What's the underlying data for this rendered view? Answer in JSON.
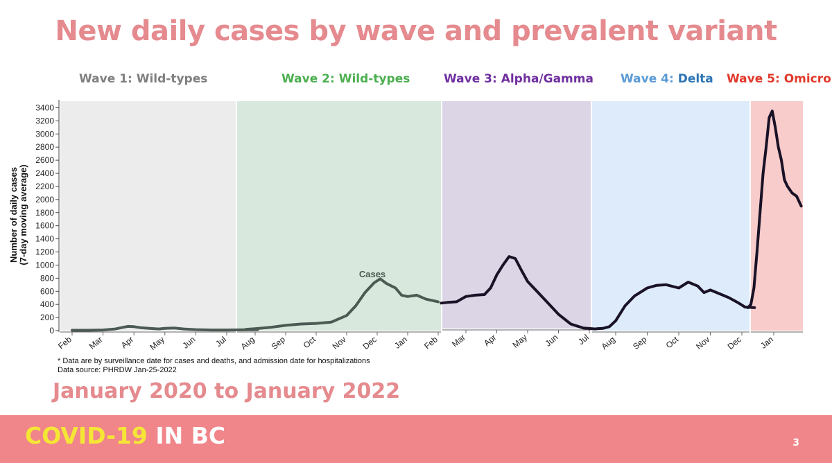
{
  "slide": {
    "title": "New daily cases by wave and prevalent variant",
    "subtitle": "January 2020 to January 2022",
    "footnote_1": "* Data are by surveillance date for cases and deaths, and admission date for hospitalizations",
    "footnote_2": "Data source: PHRDW Jan-25-2022",
    "brand_part1": "COVID-19",
    "brand_part2": "IN BC",
    "page_number": "3"
  },
  "waves": [
    {
      "label": "Wave 1: Wild-types",
      "label_color": "#7f7f7f",
      "band_color": "#ececec"
    },
    {
      "label": "Wave 2: Wild-types",
      "label_color": "#4caf50",
      "band_color": "#d8e8dc"
    },
    {
      "label": "Wave 3: Alpha/Gamma",
      "label_color": "#7030a0",
      "band_color": "#dcd5e6"
    },
    {
      "label_prefix": "Wave 4: ",
      "label_suffix": "Delta",
      "label_color": "#2e75b6",
      "label_prefix_color": "#5b9bd5",
      "band_color": "#ddebfa"
    },
    {
      "label": "Wave 5: Omicron",
      "label_color": "#e0392b",
      "band_color": "#f8cccb"
    }
  ],
  "chart_data": {
    "type": "line",
    "ylabel": "Number of daily cases\n(7-day moving average)",
    "ylim": [
      0,
      3500
    ],
    "yticks": [
      0,
      200,
      400,
      600,
      800,
      1000,
      1200,
      1400,
      1600,
      1800,
      2000,
      2200,
      2400,
      2600,
      2800,
      3000,
      3200,
      3400
    ],
    "annotation": "Cases",
    "panels": [
      {
        "wave": "Wave 1",
        "xticks": [
          "Feb",
          "Mar",
          "Apr",
          "May",
          "Jun",
          "Jul"
        ],
        "x_range": [
          0,
          6.2
        ],
        "x": [
          0,
          0.5,
          1.0,
          1.4,
          1.6,
          1.8,
          2.0,
          2.2,
          2.5,
          2.8,
          3.0,
          3.3,
          3.6,
          4.0,
          4.5,
          5.0,
          5.5,
          6.0
        ],
        "y": [
          5,
          5,
          10,
          25,
          45,
          65,
          60,
          45,
          35,
          25,
          35,
          40,
          25,
          15,
          10,
          10,
          12,
          15
        ]
      },
      {
        "wave": "Wave 2",
        "xticks": [
          "Aug",
          "Sep",
          "Oct",
          "Nov",
          "Dec",
          "Jan",
          "Feb"
        ],
        "x_range": [
          -0.3,
          6.0
        ],
        "x": [
          -0.3,
          0.0,
          0.5,
          1.0,
          1.5,
          2.0,
          2.5,
          3.0,
          3.3,
          3.6,
          3.9,
          4.1,
          4.3,
          4.6,
          4.8,
          5.0,
          5.3,
          5.6,
          6.0
        ],
        "y": [
          20,
          30,
          50,
          80,
          100,
          110,
          130,
          230,
          380,
          580,
          730,
          790,
          720,
          650,
          540,
          520,
          540,
          480,
          440
        ]
      },
      {
        "wave": "Wave 3",
        "xticks": [
          "Mar",
          "Apr",
          "May",
          "Jun",
          "Jul"
        ],
        "x_range": [
          -0.8,
          4.3
        ],
        "x": [
          -0.8,
          -0.6,
          -0.3,
          0.0,
          0.3,
          0.6,
          0.8,
          1.0,
          1.2,
          1.4,
          1.6,
          1.8,
          2.0,
          2.3,
          2.6,
          3.0,
          3.4,
          3.8,
          4.2
        ],
        "y": [
          420,
          430,
          440,
          520,
          540,
          550,
          650,
          850,
          1000,
          1130,
          1100,
          920,
          750,
          600,
          450,
          250,
          100,
          40,
          25
        ]
      },
      {
        "wave": "Wave 4",
        "xticks": [
          "Aug",
          "Sep",
          "Oct",
          "Nov",
          "Dec"
        ],
        "x_range": [
          -0.6,
          4.4
        ],
        "x": [
          -0.6,
          -0.4,
          -0.2,
          0.0,
          0.3,
          0.6,
          1.0,
          1.3,
          1.6,
          2.0,
          2.3,
          2.6,
          2.8,
          3.0,
          3.3,
          3.6,
          3.9,
          4.1,
          4.4
        ],
        "y": [
          30,
          35,
          60,
          150,
          380,
          530,
          650,
          690,
          700,
          650,
          740,
          680,
          580,
          620,
          560,
          500,
          420,
          360,
          350
        ]
      },
      {
        "wave": "Wave 5",
        "xticks": [
          "Jan"
        ],
        "x_range": [
          -0.85,
          0.9
        ],
        "x": [
          -0.85,
          -0.75,
          -0.65,
          -0.55,
          -0.45,
          -0.35,
          -0.25,
          -0.15,
          -0.05,
          0.05,
          0.15,
          0.25,
          0.35,
          0.45,
          0.6,
          0.75,
          0.9
        ],
        "y": [
          350,
          400,
          650,
          1200,
          1800,
          2400,
          2800,
          3250,
          3350,
          3100,
          2800,
          2600,
          2300,
          2200,
          2100,
          2050,
          1900
        ]
      }
    ]
  }
}
